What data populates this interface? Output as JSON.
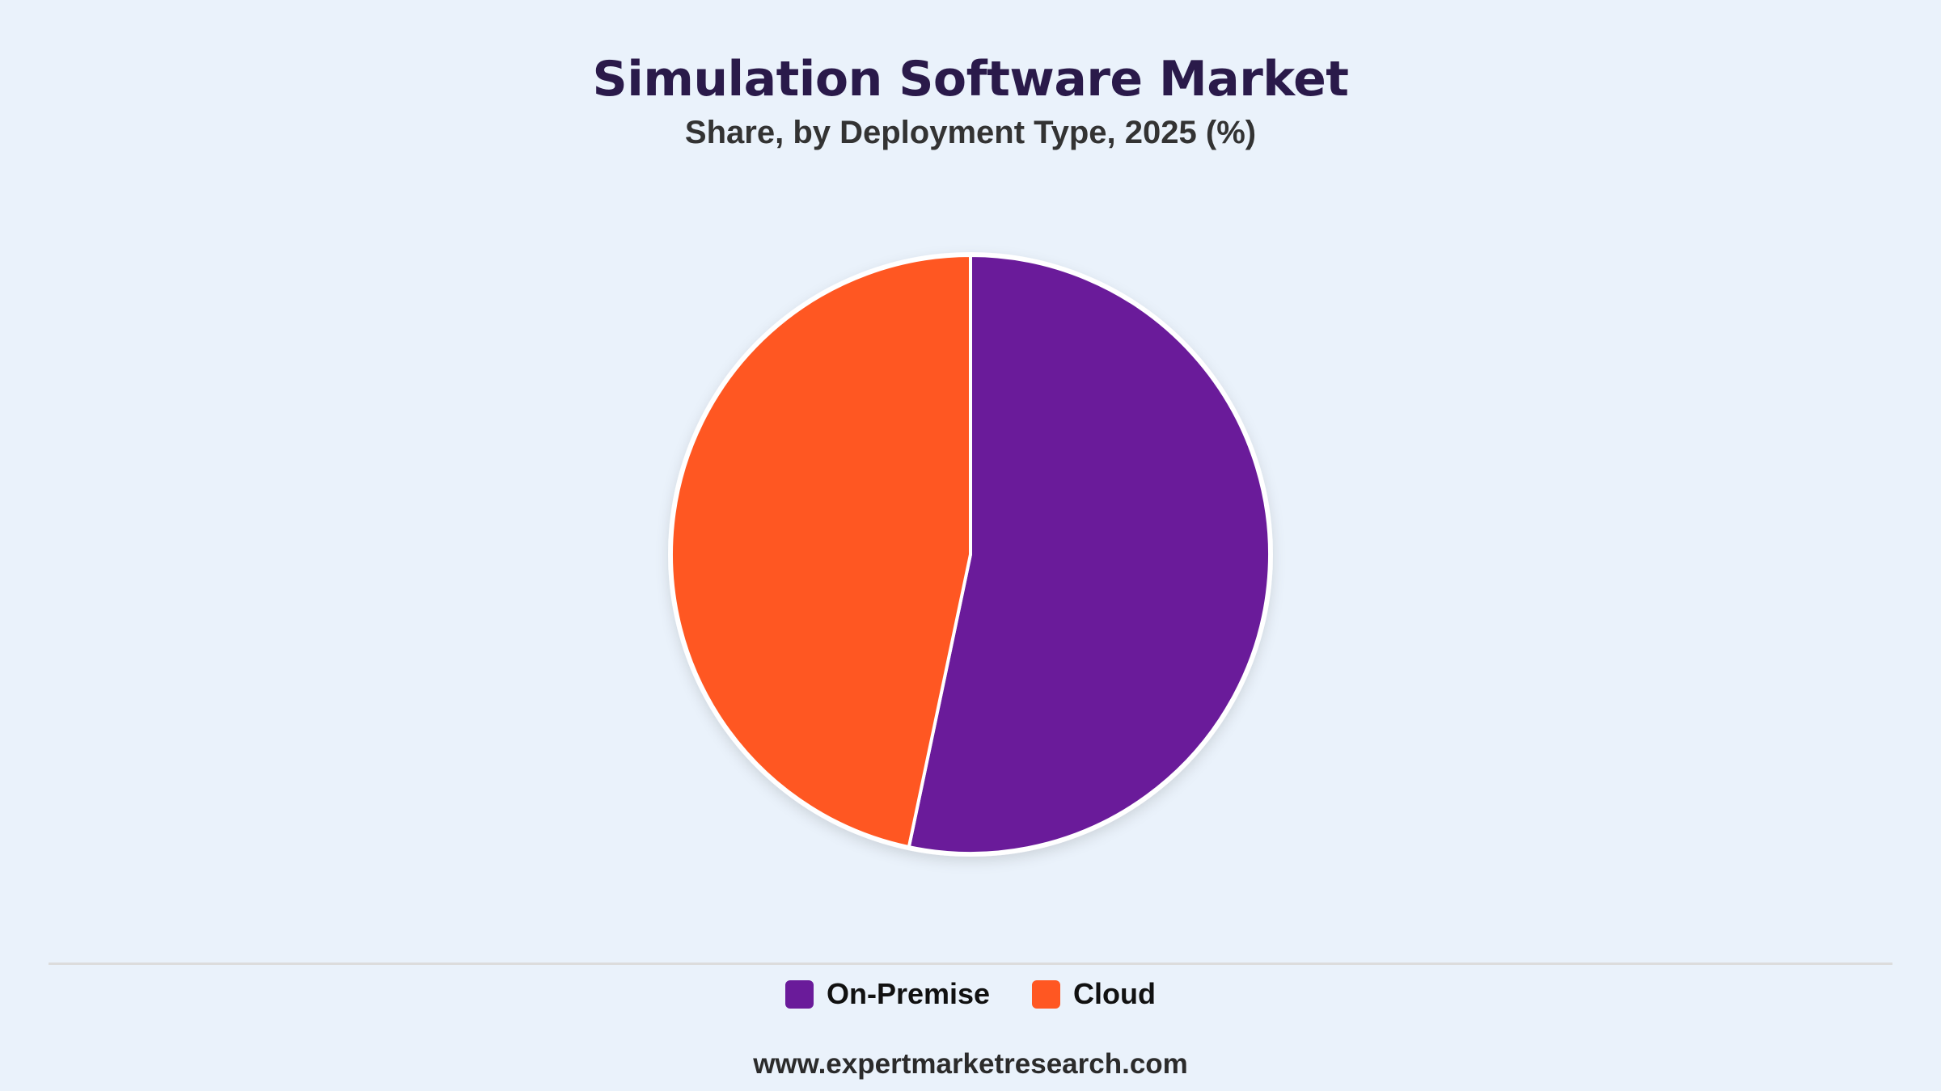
{
  "background_color": "#EAF2FB",
  "title_color": "#2A1A4A",
  "subtitle_color": "#333333",
  "divider_color": "#DCDCDC",
  "slice_border_color": "#FFFFFF",
  "footer": {
    "text": "www.expertmarketresearch.com"
  },
  "chart_data": {
    "type": "pie",
    "title": "Simulation Software Market",
    "subtitle": "Share, by Deployment Type, 2025 (%)",
    "start_angle_deg": 0,
    "direction": "clockwise",
    "legend_position": "bottom-center",
    "series": [
      {
        "name": "On-Premise",
        "value": 53.3,
        "color": "#6A1B9A"
      },
      {
        "name": "Cloud",
        "value": 46.7,
        "color": "#FF5722"
      }
    ]
  }
}
